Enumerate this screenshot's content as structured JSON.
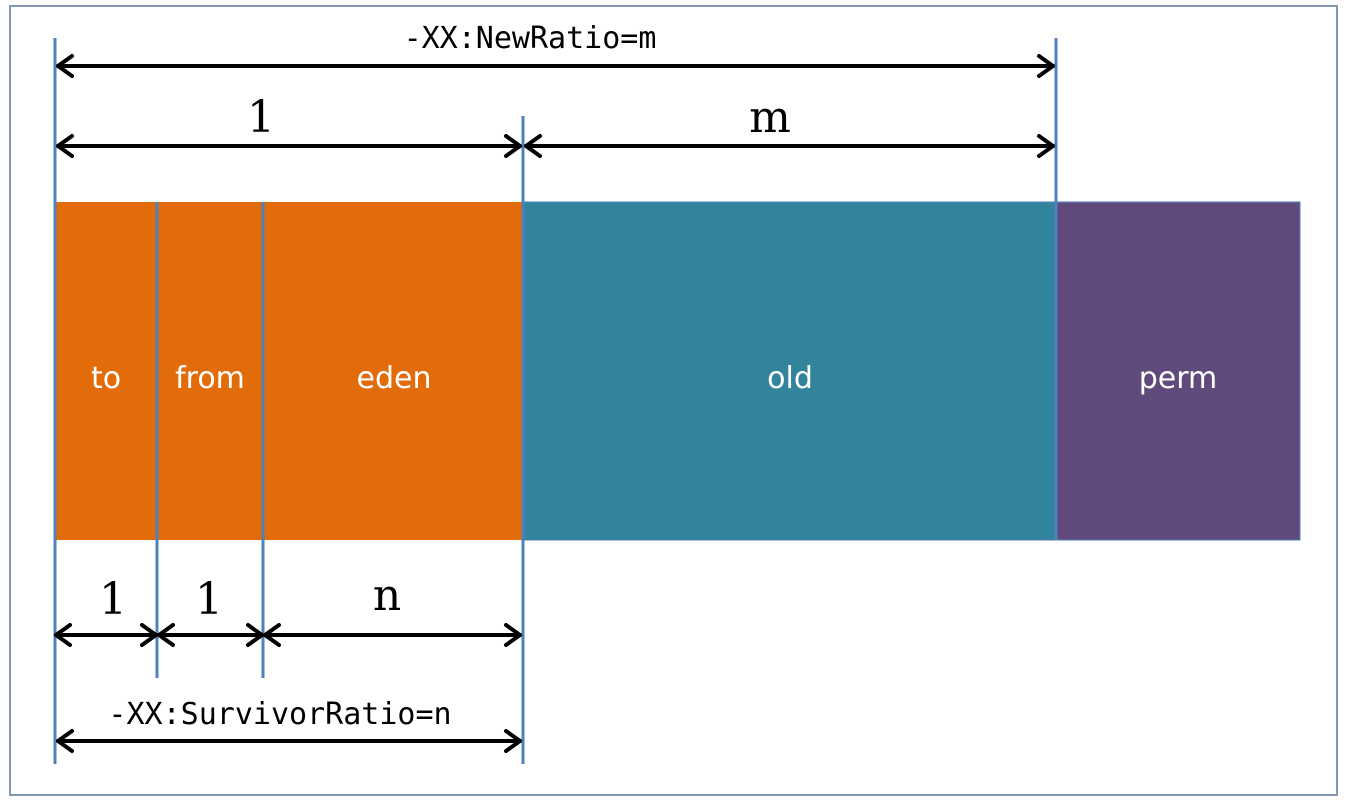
{
  "colors": {
    "young": "#e36c0a",
    "old": "#31849b",
    "perm": "#604a7b",
    "divider": "#4f81bd",
    "arrow": "#000000",
    "frame": "#8497b0"
  },
  "segments": {
    "to": "to",
    "from": "from",
    "eden": "eden",
    "old": "old",
    "perm": "perm"
  },
  "ratios": {
    "young": "1",
    "old": "m",
    "to": "1",
    "from": "1",
    "eden": "n"
  },
  "flags": {
    "new_ratio": "-XX:NewRatio=m",
    "survivor_ratio": "-XX:SurvivorRatio=n"
  }
}
